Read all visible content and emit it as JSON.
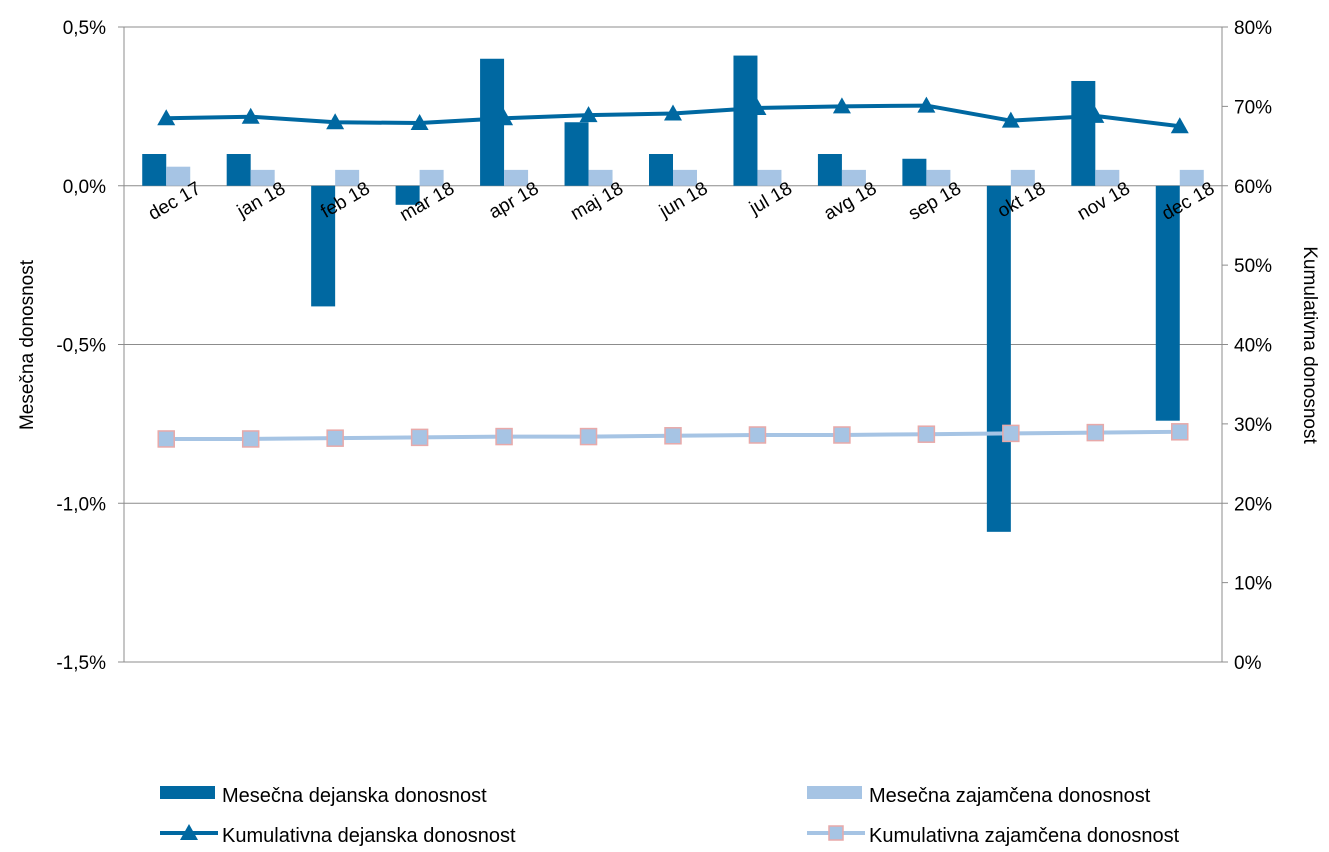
{
  "chart_data": {
    "type": "bar",
    "categories": [
      "dec 17",
      "jan 18",
      "feb 18",
      "mar 18",
      "apr 18",
      "maj 18",
      "jun 18",
      "jul 18",
      "avg 18",
      "sep 18",
      "okt 18",
      "nov 18",
      "dec 18"
    ],
    "y_left": {
      "label": "Mesečna donosnost",
      "lim": [
        -1.5,
        0.5
      ],
      "ticks": [
        0.5,
        0.0,
        -0.5,
        -1.0,
        -1.5
      ],
      "tick_labels": [
        "0,5%",
        "0,0%",
        "-0,5%",
        "-1,0%",
        "-1,5%"
      ]
    },
    "y_right": {
      "label": "Kumulativna donosnost",
      "lim": [
        0,
        80
      ],
      "ticks": [
        80,
        70,
        60,
        50,
        40,
        30,
        20,
        10,
        0
      ],
      "tick_labels": [
        "80%",
        "70%",
        "60%",
        "50%",
        "40%",
        "30%",
        "20%",
        "10%",
        "0%"
      ]
    },
    "grid": true,
    "legend_position": "bottom",
    "series": [
      {
        "name": "Mesečna dejanska donosnost",
        "kind": "bar",
        "axis": "left",
        "color": "#0068a1",
        "values": [
          0.1,
          0.1,
          -0.38,
          -0.06,
          0.4,
          0.2,
          0.1,
          0.41,
          0.1,
          0.085,
          -1.09,
          0.33,
          -0.74
        ]
      },
      {
        "name": "Mesečna zajamčena donosnost",
        "kind": "bar",
        "axis": "left",
        "color": "#a6c4e4",
        "values": [
          0.06,
          0.05,
          0.05,
          0.05,
          0.05,
          0.05,
          0.05,
          0.05,
          0.05,
          0.05,
          0.05,
          0.05,
          0.05
        ]
      },
      {
        "name": "Kumulativna dejanska donosnost",
        "kind": "line",
        "axis": "right",
        "marker": "triangle",
        "color": "#0068a1",
        "values": [
          68.5,
          68.7,
          68.0,
          67.9,
          68.5,
          68.9,
          69.1,
          69.8,
          70.0,
          70.1,
          68.2,
          68.8,
          67.5
        ]
      },
      {
        "name": "Kumulativna zajamčena donosnost",
        "kind": "line",
        "axis": "right",
        "marker": "square",
        "color": "#a6c4e4",
        "marker_edge": "#e8a9a9",
        "values": [
          28.1,
          28.1,
          28.2,
          28.3,
          28.4,
          28.4,
          28.5,
          28.6,
          28.6,
          28.7,
          28.8,
          28.9,
          29.0
        ]
      }
    ]
  }
}
